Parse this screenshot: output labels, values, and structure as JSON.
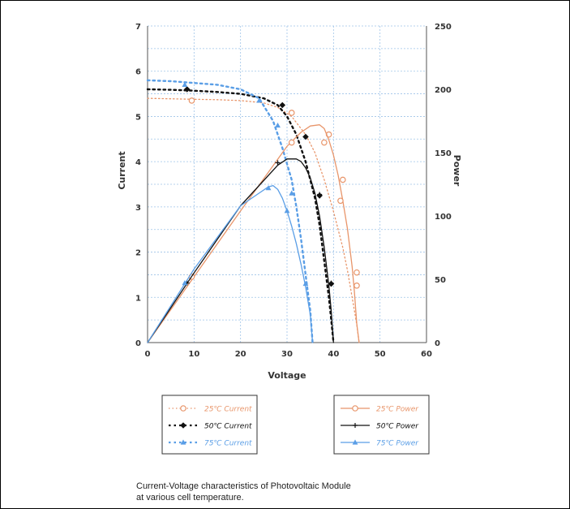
{
  "chart_data": {
    "type": "line",
    "xlabel": "Voltage",
    "ylabel_left": "Current",
    "ylabel_right": "Power",
    "xlim": [
      0,
      60
    ],
    "ylim_left": [
      0,
      7
    ],
    "ylim_right": [
      0,
      250
    ],
    "x_ticks": [
      "0",
      "10",
      "20",
      "30",
      "40",
      "50",
      "60"
    ],
    "y_left_ticks": [
      "0",
      "1",
      "2",
      "3",
      "4",
      "5",
      "6",
      "7"
    ],
    "y_right_ticks": [
      "0",
      "50",
      "100",
      "150",
      "200",
      "250"
    ],
    "grid": true,
    "caption_lines": [
      "Current-Voltage characteristics of Photovoltaic Module",
      "at various cell temperature."
    ],
    "series": [
      {
        "name": "25℃ Current",
        "axis": "left",
        "style": "dotted",
        "marker": "circle",
        "color": "#e8956a",
        "points": [
          [
            0,
            5.4
          ],
          [
            5,
            5.39
          ],
          [
            10,
            5.38
          ],
          [
            15,
            5.37
          ],
          [
            20,
            5.35
          ],
          [
            25,
            5.3
          ],
          [
            28,
            5.2
          ],
          [
            31,
            5.0
          ],
          [
            34,
            4.6
          ],
          [
            36,
            4.2
          ],
          [
            38,
            3.6
          ],
          [
            40,
            2.9
          ],
          [
            42,
            2.1
          ],
          [
            43,
            1.6
          ],
          [
            44,
            1.0
          ],
          [
            45,
            0.4
          ],
          [
            45.5,
            0
          ]
        ],
        "markers": [
          [
            9.5,
            5.35
          ],
          [
            31,
            5.08
          ],
          [
            39,
            4.6
          ],
          [
            42,
            3.6
          ],
          [
            45,
            1.55
          ]
        ]
      },
      {
        "name": "50℃ Current",
        "axis": "left",
        "style": "dotted",
        "marker": "diamond",
        "color": "#111111",
        "points": [
          [
            0,
            5.6
          ],
          [
            5,
            5.59
          ],
          [
            10,
            5.57
          ],
          [
            15,
            5.54
          ],
          [
            20,
            5.5
          ],
          [
            25,
            5.4
          ],
          [
            28,
            5.25
          ],
          [
            30,
            5.0
          ],
          [
            32,
            4.6
          ],
          [
            34,
            4.0
          ],
          [
            36,
            3.2
          ],
          [
            37,
            2.6
          ],
          [
            38,
            1.8
          ],
          [
            39,
            1.0
          ],
          [
            39.5,
            0.5
          ],
          [
            40,
            0
          ]
        ],
        "markers": [
          [
            8.5,
            5.6
          ],
          [
            29,
            5.25
          ],
          [
            34,
            4.55
          ],
          [
            37,
            3.25
          ],
          [
            39.5,
            1.3
          ]
        ]
      },
      {
        "name": "75℃ Current",
        "axis": "left",
        "style": "dotted",
        "marker": "triangle",
        "color": "#5a9ee6",
        "points": [
          [
            0,
            5.8
          ],
          [
            5,
            5.78
          ],
          [
            10,
            5.74
          ],
          [
            15,
            5.7
          ],
          [
            20,
            5.6
          ],
          [
            24,
            5.4
          ],
          [
            27,
            4.9
          ],
          [
            29,
            4.3
          ],
          [
            31,
            3.6
          ],
          [
            32,
            3.0
          ],
          [
            33,
            2.3
          ],
          [
            34,
            1.5
          ],
          [
            35,
            0.7
          ],
          [
            35.5,
            0
          ]
        ],
        "markers": [
          [
            8,
            5.7
          ],
          [
            24,
            5.35
          ],
          [
            28,
            4.8
          ],
          [
            31,
            3.3
          ],
          [
            34,
            1.3
          ]
        ]
      },
      {
        "name": "25℃ Power",
        "axis": "right",
        "style": "solid",
        "marker": "circle",
        "color": "#e8956a",
        "points": [
          [
            0,
            0
          ],
          [
            10,
            52
          ],
          [
            20,
            104
          ],
          [
            30,
            155
          ],
          [
            33,
            166
          ],
          [
            35,
            171
          ],
          [
            37,
            172
          ],
          [
            38,
            169
          ],
          [
            39,
            160
          ],
          [
            40,
            148
          ],
          [
            41,
            132
          ],
          [
            42,
            112
          ],
          [
            43,
            90
          ],
          [
            44,
            60
          ],
          [
            44.5,
            40
          ],
          [
            45,
            15
          ],
          [
            45.5,
            0
          ]
        ],
        "markers": [
          [
            9.5,
            52
          ],
          [
            31,
            158
          ],
          [
            38,
            158
          ],
          [
            41.5,
            112
          ],
          [
            45,
            45
          ]
        ]
      },
      {
        "name": "50℃ Power",
        "axis": "right",
        "style": "solid",
        "marker": "cross",
        "color": "#111111",
        "points": [
          [
            0,
            0
          ],
          [
            10,
            55
          ],
          [
            20,
            108
          ],
          [
            28,
            140
          ],
          [
            30,
            145
          ],
          [
            32,
            145
          ],
          [
            33,
            143
          ],
          [
            34,
            138
          ],
          [
            35,
            130
          ],
          [
            36,
            118
          ],
          [
            37,
            100
          ],
          [
            38,
            75
          ],
          [
            39,
            45
          ],
          [
            39.5,
            25
          ],
          [
            40,
            0
          ]
        ],
        "markers": [
          [
            8.5,
            47
          ],
          [
            28,
            142
          ],
          [
            37,
            117
          ],
          [
            39.5,
            47
          ]
        ]
      },
      {
        "name": "75℃ Power",
        "axis": "right",
        "style": "solid",
        "marker": "triangle",
        "color": "#5a9ee6",
        "points": [
          [
            0,
            0
          ],
          [
            10,
            58
          ],
          [
            20,
            108
          ],
          [
            24,
            118
          ],
          [
            26,
            123
          ],
          [
            27,
            124
          ],
          [
            28,
            121
          ],
          [
            29,
            114
          ],
          [
            30,
            104
          ],
          [
            31,
            92
          ],
          [
            32,
            78
          ],
          [
            33,
            62
          ],
          [
            34,
            44
          ],
          [
            35,
            22
          ],
          [
            35.5,
            0
          ]
        ],
        "markers": [
          [
            8,
            47
          ],
          [
            26,
            122
          ],
          [
            30,
            104
          ]
        ]
      }
    ]
  }
}
